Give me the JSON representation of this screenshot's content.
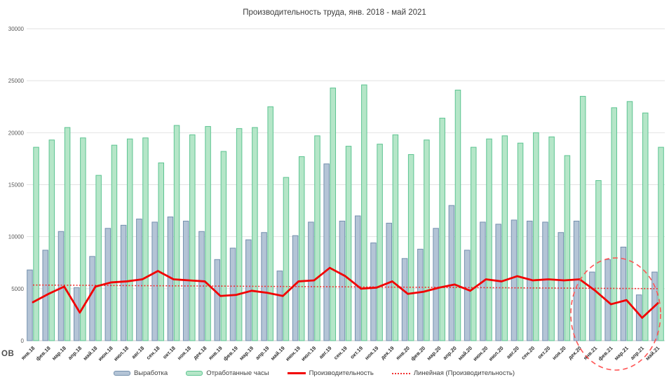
{
  "chart_data": {
    "type": "bar",
    "title": "Производительность труда, янв. 2018 - май 2021",
    "xlabel": "",
    "ylabel": "",
    "partial_left_label": "ОВ",
    "ylim": [
      0,
      30000
    ],
    "ytick_step": 5000,
    "y_ticks": [
      "0",
      "5000",
      "10000",
      "15000",
      "20000",
      "25000",
      "30000"
    ],
    "grid": true,
    "legend_position": "bottom",
    "categories": [
      "янв.18",
      "фев.18",
      "мар.18",
      "апр.18",
      "май.18",
      "июн.18",
      "июл.18",
      "авг.18",
      "сен.18",
      "окт.18",
      "ноя.18",
      "дек.18",
      "янв.19",
      "фев.19",
      "мар.19",
      "апр.19",
      "май.19",
      "июн.19",
      "июл.19",
      "авг.19",
      "сен.19",
      "окт.19",
      "ноя.19",
      "дек.19",
      "янв.20",
      "фев.20",
      "мар.20",
      "апр.20",
      "май.20",
      "июн.20",
      "июл.20",
      "авг.20",
      "сен.20",
      "окт.20",
      "ноя.20",
      "дек.20",
      "янв.21",
      "фев.21",
      "мар.21",
      "апр.21",
      "май.21"
    ],
    "series": [
      {
        "name": "Выработка",
        "type": "bar",
        "fill": "#b4c4d6",
        "border": "#7390ad",
        "values": [
          6800,
          8700,
          10500,
          5100,
          8100,
          10800,
          11100,
          11700,
          11400,
          11900,
          11500,
          10500,
          7800,
          8900,
          9700,
          10400,
          6700,
          10100,
          11400,
          17000,
          11500,
          12000,
          9400,
          11300,
          7900,
          8800,
          10800,
          13000,
          8700,
          11400,
          11200,
          11600,
          11500,
          11400,
          10400,
          11500,
          6600,
          7800,
          9000,
          4400,
          6600
        ]
      },
      {
        "name": "Отработанные часы",
        "type": "bar",
        "fill": "#b5e6c8",
        "border": "#5cc491",
        "values": [
          18600,
          19300,
          20500,
          19500,
          15900,
          18800,
          19400,
          19500,
          17100,
          20700,
          19800,
          20600,
          18200,
          20400,
          20500,
          22500,
          15700,
          17700,
          19700,
          24300,
          18700,
          24600,
          18900,
          19800,
          17900,
          19300,
          21400,
          24100,
          18600,
          19400,
          19700,
          19000,
          20000,
          19600,
          17800,
          23500,
          15400,
          22400,
          23000,
          21900,
          18600
        ]
      },
      {
        "name": "Производительность",
        "type": "line",
        "color": "#f20000",
        "values": [
          3700,
          4500,
          5200,
          2700,
          5200,
          5600,
          5700,
          5900,
          6700,
          5900,
          5800,
          5700,
          4300,
          4400,
          4800,
          4600,
          4300,
          5700,
          5800,
          7000,
          6200,
          5000,
          5100,
          5700,
          4500,
          4700,
          5100,
          5400,
          4800,
          5900,
          5700,
          6200,
          5800,
          5900,
          5800,
          5900,
          4800,
          3500,
          3900,
          2200,
          3600
        ]
      },
      {
        "name": "Линейная (Производительность)",
        "type": "trend",
        "color": "#f23030",
        "start_value": 5350,
        "end_value": 5000
      }
    ],
    "highlight_ellipse": {
      "color": "#ff5555",
      "circled_months": [
        "янв.21",
        "фев.21",
        "мар.21",
        "апр.21",
        "май.21"
      ]
    }
  }
}
